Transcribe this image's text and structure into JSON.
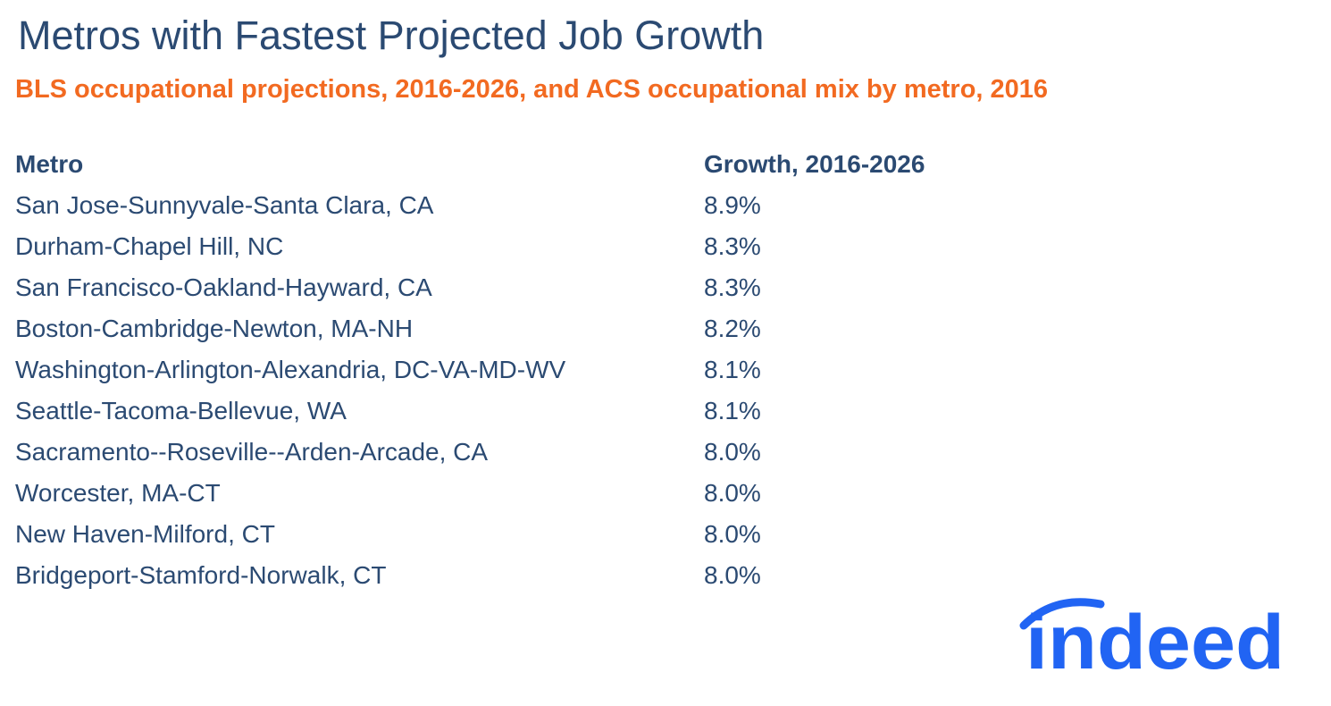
{
  "header": {
    "title": "Metros with Fastest Projected Job Growth",
    "subtitle": "BLS occupational projections, 2016-2026, and ACS occupational mix by metro, 2016"
  },
  "table": {
    "columns": [
      "Metro",
      "Growth, 2016-2026"
    ],
    "rows": [
      [
        "San Jose-Sunnyvale-Santa Clara, CA",
        "8.9%"
      ],
      [
        "Durham-Chapel Hill, NC",
        "8.3%"
      ],
      [
        "San Francisco-Oakland-Hayward, CA",
        "8.3%"
      ],
      [
        "Boston-Cambridge-Newton, MA-NH",
        "8.2%"
      ],
      [
        "Washington-Arlington-Alexandria, DC-VA-MD-WV",
        "8.1%"
      ],
      [
        "Seattle-Tacoma-Bellevue, WA",
        "8.1%"
      ],
      [
        "Sacramento--Roseville--Arden-Arcade, CA",
        "8.0%"
      ],
      [
        "Worcester, MA-CT",
        "8.0%"
      ],
      [
        "New Haven-Milford, CT",
        "8.0%"
      ],
      [
        "Bridgeport-Stamford-Norwalk, CT",
        "8.0%"
      ]
    ]
  },
  "logo": {
    "text": "indeed"
  }
}
